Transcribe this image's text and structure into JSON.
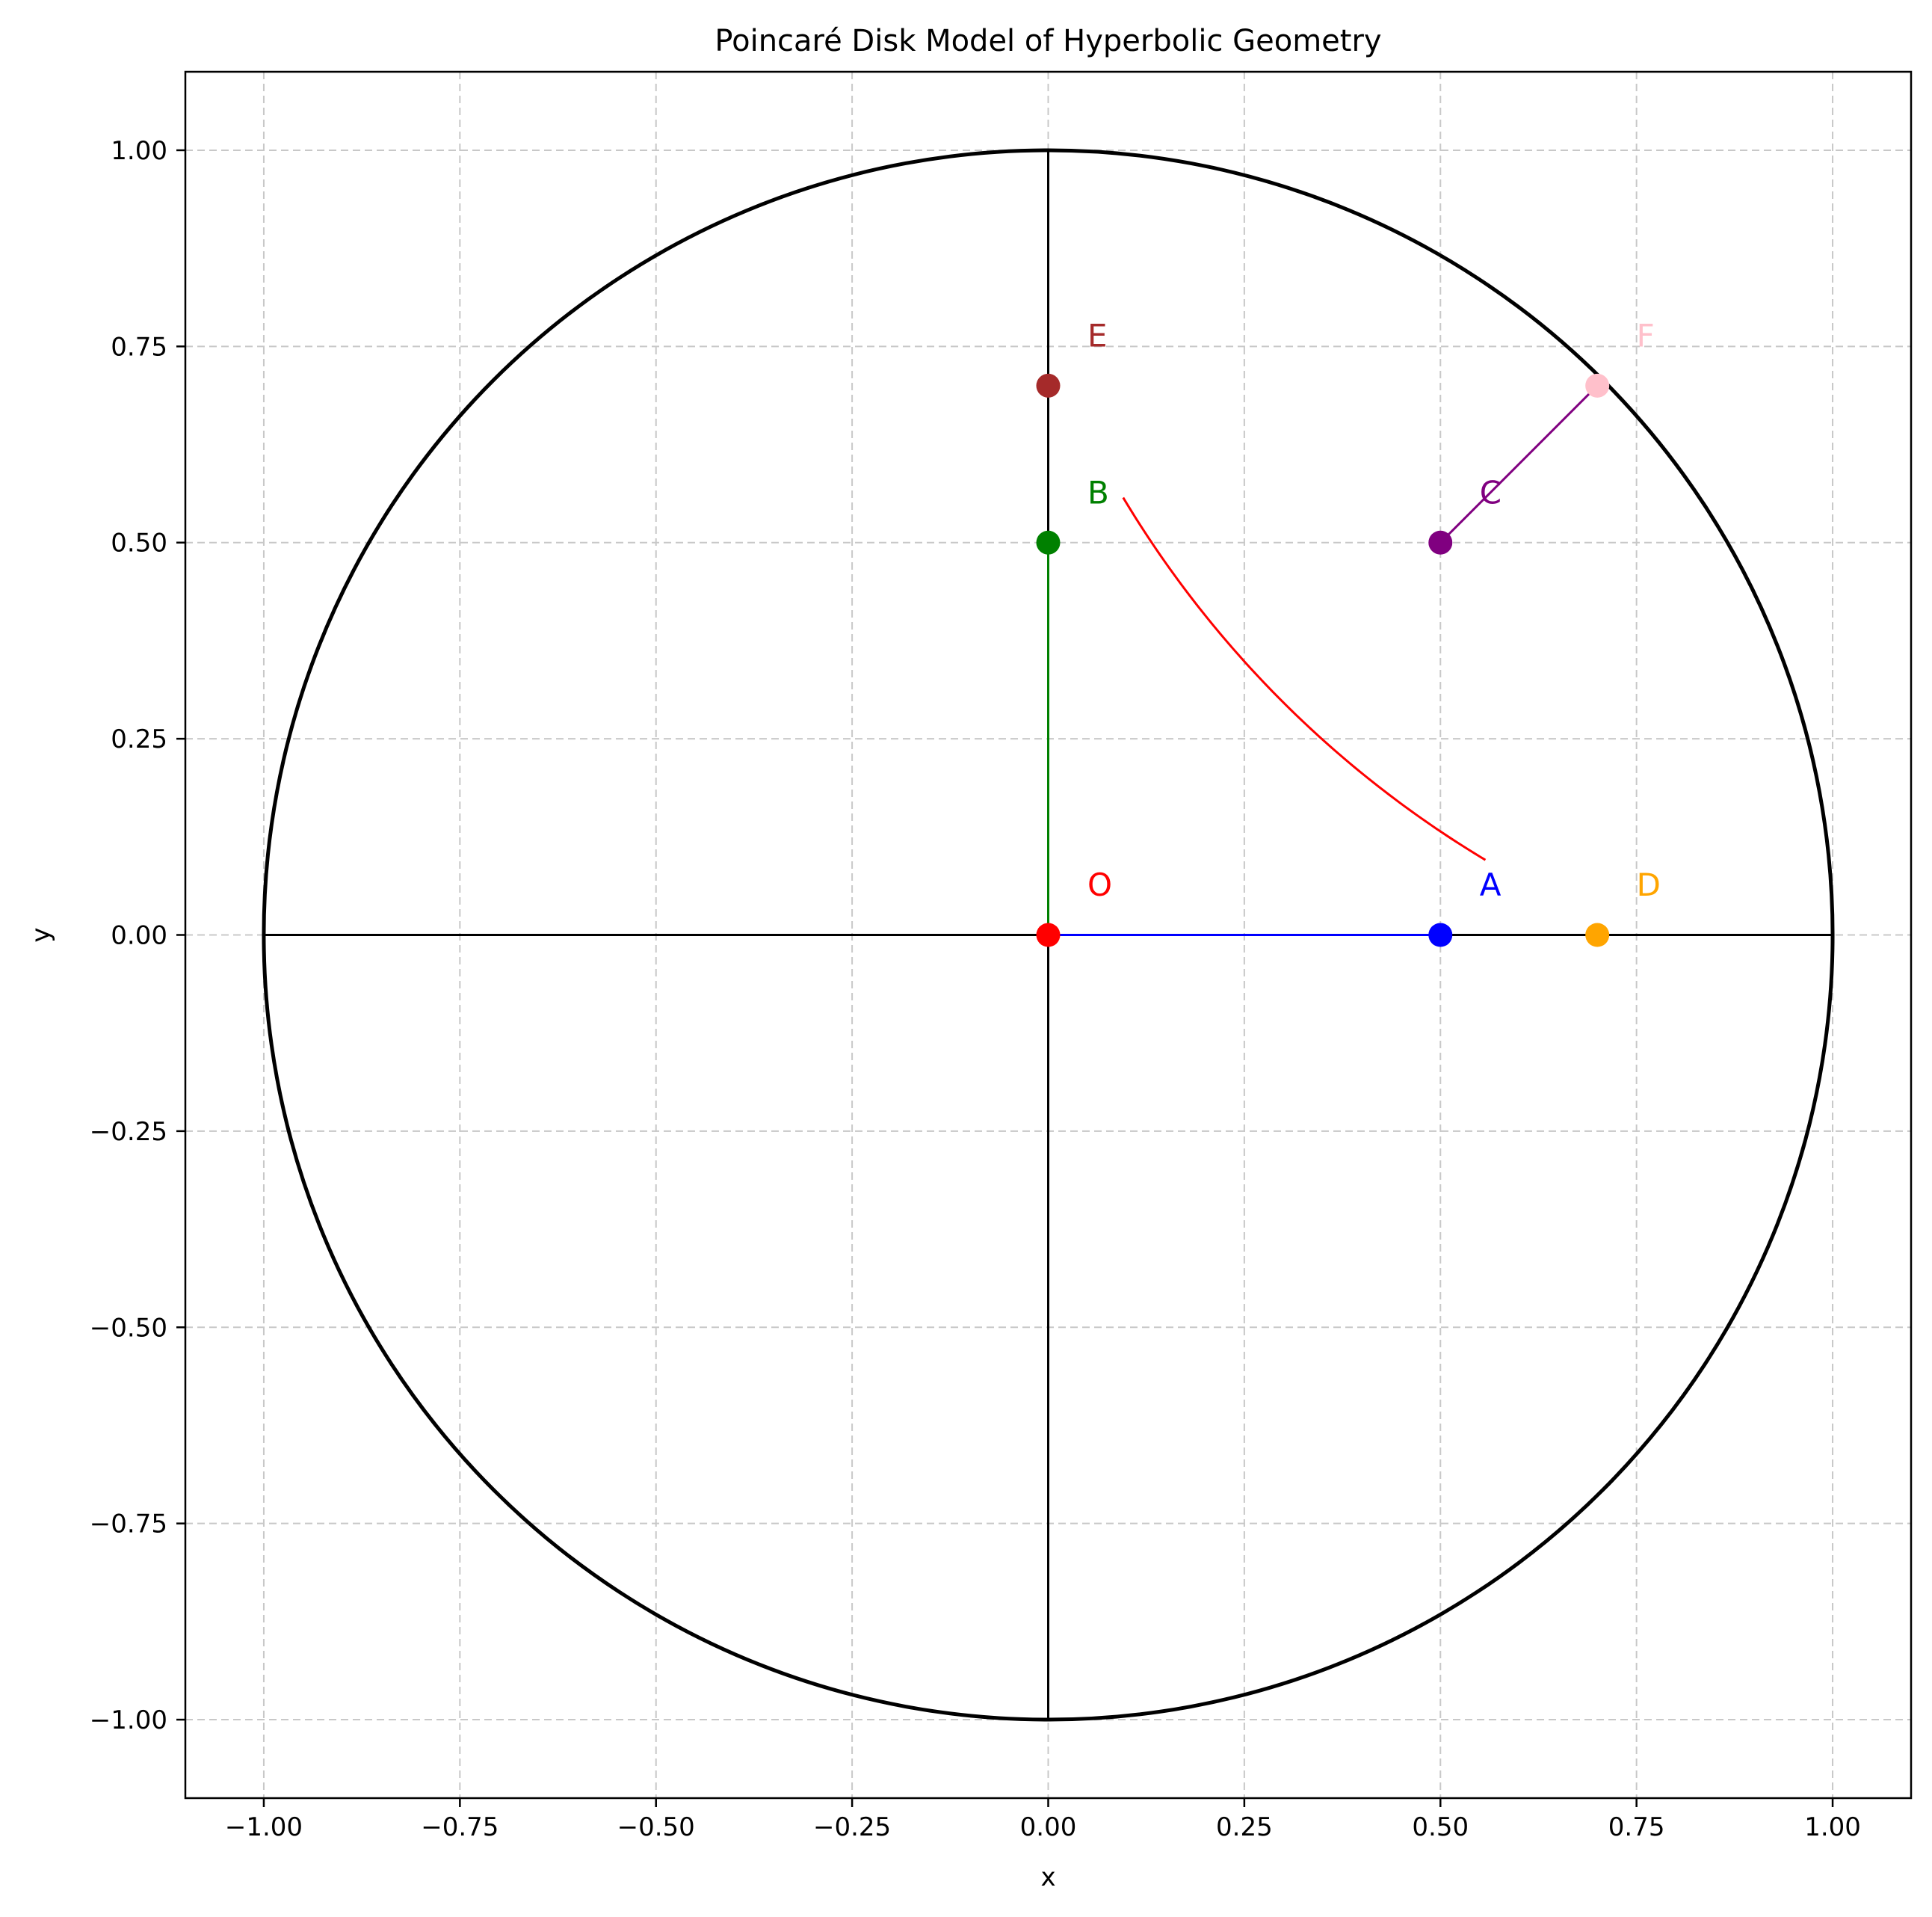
{
  "chart_data": {
    "type": "scatter",
    "title": "Poincaré Disk Model of Hyperbolic Geometry",
    "xlabel": "x",
    "ylabel": "y",
    "xlim": [
      -1.1,
      1.1
    ],
    "ylim": [
      -1.1,
      1.1
    ],
    "grid": true,
    "x_ticks": [
      -1.0,
      -0.75,
      -0.5,
      -0.25,
      0.0,
      0.25,
      0.5,
      0.75,
      1.0
    ],
    "x_tick_labels": [
      "−1.00",
      "−0.75",
      "−0.50",
      "−0.25",
      "0.00",
      "0.25",
      "0.50",
      "0.75",
      "1.00"
    ],
    "y_ticks": [
      -1.0,
      -0.75,
      -0.5,
      -0.25,
      0.0,
      0.25,
      0.5,
      0.75,
      1.0
    ],
    "y_tick_labels": [
      "−1.00",
      "−0.75",
      "−0.50",
      "−0.25",
      "0.00",
      "0.25",
      "0.50",
      "0.75",
      "1.00"
    ],
    "disk": {
      "center": [
        0,
        0
      ],
      "radius": 1,
      "color": "#000000"
    },
    "axes_lines": {
      "color": "#000000"
    },
    "points": [
      {
        "label": "O",
        "x": 0.0,
        "y": 0.0,
        "color": "#ff0000"
      },
      {
        "label": "A",
        "x": 0.5,
        "y": 0.0,
        "color": "#0000ff"
      },
      {
        "label": "B",
        "x": 0.0,
        "y": 0.5,
        "color": "#008000"
      },
      {
        "label": "C",
        "x": 0.5,
        "y": 0.5,
        "color": "#800080"
      },
      {
        "label": "D",
        "x": 0.7,
        "y": 0.0,
        "color": "#ffa500"
      },
      {
        "label": "E",
        "x": 0.0,
        "y": 0.7,
        "color": "#a52a2a"
      },
      {
        "label": "F",
        "x": 0.7,
        "y": 0.7,
        "color": "#ffc0cb"
      }
    ],
    "segments": [
      {
        "from": "O",
        "to": "A",
        "color": "#0000ff"
      },
      {
        "from": "O",
        "to": "B",
        "color": "#008000"
      },
      {
        "from": "C",
        "to": "F",
        "color": "#800080"
      }
    ],
    "geodesics": [
      {
        "from": "A",
        "to": "B",
        "color": "#ff0000",
        "center": [
          1.25,
          1.25
        ],
        "radius": 1.3463
      }
    ]
  }
}
